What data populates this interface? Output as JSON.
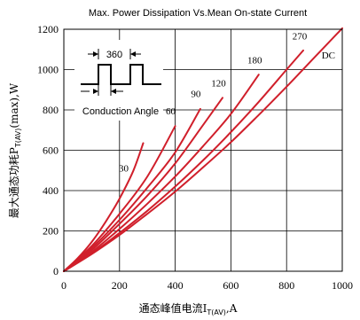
{
  "chart_data": {
    "type": "line",
    "title": "Max. Power Dissipation Vs.Mean On-state Current",
    "xlabel": {
      "prefix": "通态峰值电流I",
      "sub": "T(AV)",
      "suffix": ",A"
    },
    "ylabel": {
      "prefix": "最大通态功耗P",
      "sub": "T(AV)",
      "suffix": "(max),W"
    },
    "xlim": [
      0,
      1000
    ],
    "ylim": [
      0,
      1200
    ],
    "xticks": [
      0,
      200,
      400,
      600,
      800,
      1000
    ],
    "yticks": [
      0,
      200,
      400,
      600,
      800,
      1000,
      1200
    ],
    "grid": true,
    "line_color": "#d01f2b",
    "inset": {
      "angle_label": "360",
      "caption": "Conduction Angle"
    },
    "series": [
      {
        "name": "30",
        "x": [
          0,
          50,
          100,
          150,
          200,
          250,
          285
        ],
        "y": [
          0,
          65,
          145,
          245,
          360,
          500,
          635
        ]
      },
      {
        "name": "60",
        "x": [
          0,
          100,
          200,
          300,
          400
        ],
        "y": [
          0,
          125,
          285,
          470,
          720
        ]
      },
      {
        "name": "90",
        "x": [
          0,
          100,
          200,
          300,
          400,
          490
        ],
        "y": [
          0,
          115,
          255,
          415,
          590,
          805
        ]
      },
      {
        "name": "120",
        "x": [
          0,
          100,
          200,
          300,
          400,
          500,
          570
        ],
        "y": [
          0,
          105,
          235,
          375,
          535,
          725,
          860
        ]
      },
      {
        "name": "180",
        "x": [
          0,
          100,
          200,
          300,
          400,
          500,
          600,
          700
        ],
        "y": [
          0,
          95,
          210,
          335,
          470,
          620,
          780,
          975
        ]
      },
      {
        "name": "270",
        "x": [
          0,
          100,
          200,
          300,
          400,
          500,
          600,
          700,
          800,
          860
        ],
        "y": [
          0,
          88,
          190,
          300,
          420,
          550,
          690,
          840,
          1000,
          1095
        ]
      },
      {
        "name": "DC",
        "x": [
          0,
          100,
          200,
          300,
          400,
          500,
          600,
          700,
          800,
          900,
          1000
        ],
        "y": [
          0,
          85,
          180,
          285,
          395,
          515,
          640,
          775,
          915,
          1060,
          1205
        ]
      }
    ]
  }
}
